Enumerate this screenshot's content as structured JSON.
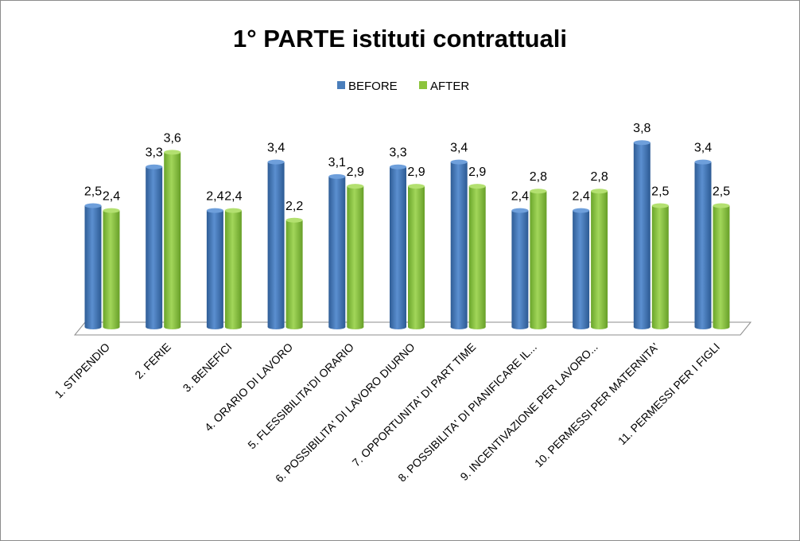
{
  "chart_data": {
    "type": "bar",
    "title": "1° PARTE istituti contrattuali",
    "xlabel": "",
    "ylabel": "",
    "ylim": [
      0,
      4
    ],
    "grid": false,
    "legend_position": "top",
    "categories": [
      "1. STIPENDIO",
      "2. FERIE",
      "3. BENEFICI",
      "4. ORARIO DI LAVORO",
      "5. FLESSIBILITA'DI  ORARIO",
      "6. POSSIBILITA' DI LAVORO DIURNO",
      "7. OPPORTUNITA' DI PART TIME",
      "8. POSSIBILITA' DI PIANIFICARE IL...",
      "9. INCENTIVAZIONE PER LAVORO...",
      "10. PERMESSI PER MATERNITA'",
      "11. PERMESSI PER I FIGLI"
    ],
    "series": [
      {
        "name": "BEFORE",
        "color": "#4a7ebb",
        "values": [
          2.5,
          3.3,
          2.4,
          3.4,
          3.1,
          3.3,
          3.4,
          2.4,
          2.4,
          3.8,
          3.4
        ],
        "labels": [
          "2,5",
          "3,3",
          "2,4",
          "3,4",
          "3,1",
          "3,3",
          "3,4",
          "2,4",
          "2,4",
          "3,8",
          "3,4"
        ]
      },
      {
        "name": "AFTER",
        "color": "#8cc43c",
        "values": [
          2.4,
          3.6,
          2.4,
          2.2,
          2.9,
          2.9,
          2.9,
          2.8,
          2.8,
          2.5,
          2.5
        ],
        "labels": [
          "2,4",
          "3,6",
          "2,4",
          "2,2",
          "2,9",
          "2,9",
          "2,9",
          "2,8",
          "2,8",
          "2,5",
          "2,5"
        ]
      }
    ]
  }
}
